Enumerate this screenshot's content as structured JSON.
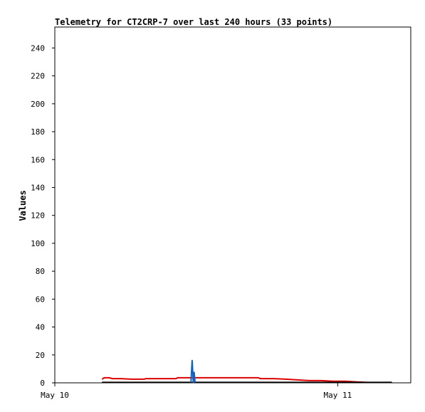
{
  "chart_data": {
    "type": "line",
    "title": "Telemetry for CT2CRP-7 over last 240 hours (33 points)",
    "xlabel": "",
    "ylabel": "Values",
    "ylim": [
      0,
      255
    ],
    "yticks": [
      0,
      20,
      40,
      60,
      80,
      100,
      120,
      140,
      160,
      180,
      200,
      220,
      240
    ],
    "xlim_hours": [
      0,
      30.2
    ],
    "xticks": [
      {
        "label": "May 10",
        "hour": 0
      },
      {
        "label": "May 11",
        "hour": 24
      }
    ],
    "grid": false,
    "legend": "none",
    "series": [
      {
        "color": "#dd0000",
        "points": [
          [
            4.0,
            2.6
          ],
          [
            4.2,
            3.6
          ],
          [
            4.6,
            3.6
          ],
          [
            4.9,
            3.0
          ],
          [
            5.6,
            3.0
          ],
          [
            6.5,
            2.6
          ],
          [
            7.6,
            2.6
          ],
          [
            7.7,
            3.0
          ],
          [
            8.6,
            3.0
          ],
          [
            9.6,
            3.0
          ],
          [
            10.3,
            3.0
          ],
          [
            10.4,
            3.6
          ],
          [
            11.6,
            3.6
          ],
          [
            12.6,
            3.6
          ],
          [
            13.6,
            3.6
          ],
          [
            14.6,
            3.6
          ],
          [
            16.3,
            3.6
          ],
          [
            17.3,
            3.6
          ],
          [
            17.4,
            3.0
          ],
          [
            18.6,
            3.0
          ],
          [
            19.6,
            2.6
          ],
          [
            20.6,
            2.1
          ],
          [
            21.6,
            1.6
          ],
          [
            22.6,
            1.6
          ],
          [
            23.6,
            1.1
          ],
          [
            24.6,
            1.1
          ],
          [
            25.6,
            0.6
          ],
          [
            26.4,
            0.3
          ]
        ]
      },
      {
        "color": "#000000",
        "points": [
          [
            4.0,
            0.3
          ],
          [
            28.6,
            0.3
          ]
        ]
      },
      {
        "color": "#1560bd",
        "points": [
          [
            11.55,
            0.3
          ],
          [
            11.65,
            16.0
          ],
          [
            11.75,
            0.3
          ],
          [
            11.82,
            7.5
          ],
          [
            11.9,
            0.3
          ]
        ]
      }
    ]
  }
}
